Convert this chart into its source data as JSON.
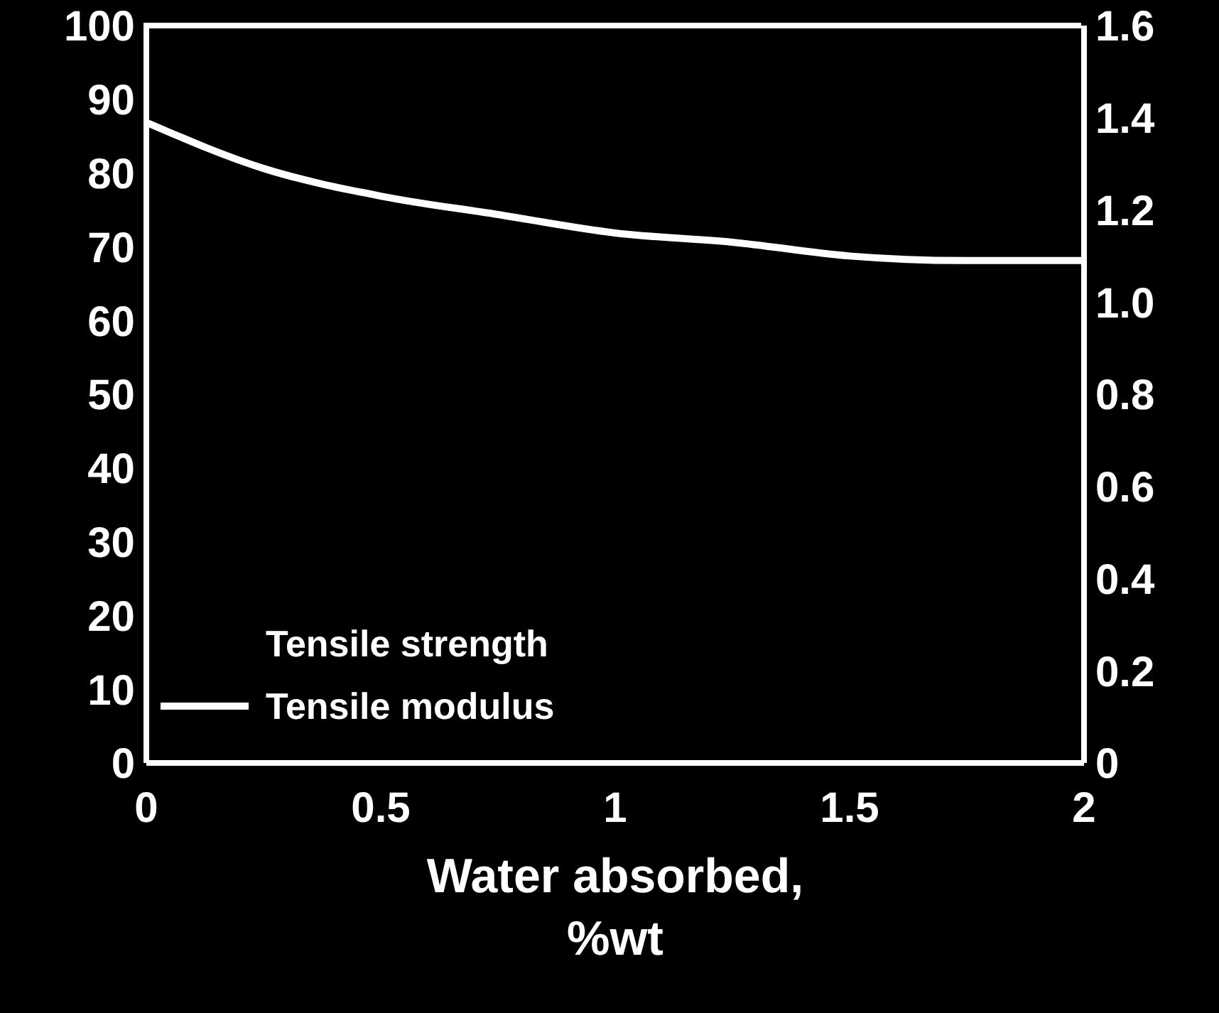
{
  "chart_data": {
    "type": "line",
    "xlabel": "Water absorbed, %wt",
    "x": [
      0,
      0.25,
      0.5,
      0.75,
      1,
      1.25,
      1.5,
      1.75,
      2
    ],
    "series": [
      {
        "name": "Tensile strength",
        "axis": "y",
        "values": [
          null,
          null,
          null,
          null,
          null,
          null,
          null,
          null,
          null
        ]
      },
      {
        "name": "Tensile modulus",
        "color": "#ffffff",
        "axis": "y2",
        "values": [
          1.39,
          1.29,
          1.23,
          1.19,
          1.15,
          1.13,
          1.1,
          1.09,
          1.09
        ]
      }
    ],
    "xlim": [
      0,
      2
    ],
    "xticks": [
      0,
      0.5,
      1,
      1.5,
      2
    ],
    "ylim": [
      0,
      100
    ],
    "yticks": [
      0,
      10,
      20,
      30,
      40,
      50,
      60,
      70,
      80,
      90,
      100
    ],
    "y2lim": [
      0,
      1.6
    ],
    "y2ticks": [
      0,
      0.2,
      0.4,
      0.6,
      0.8,
      {
        "value": 1,
        "label": "1.0"
      },
      1.2,
      1.4,
      1.6
    ],
    "grid": false,
    "legend": "bottom left",
    "marker": "none",
    "line_style": "solid"
  }
}
